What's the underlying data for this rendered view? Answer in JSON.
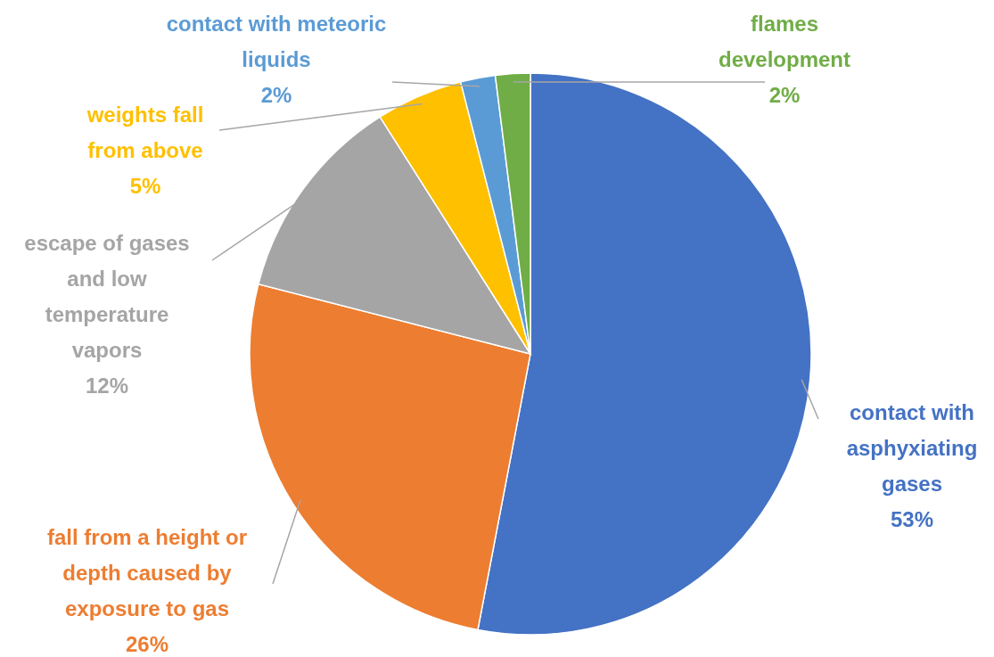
{
  "chart_data": {
    "type": "pie",
    "categories": [
      "contact with asphyxiating gases",
      "fall from a height or depth caused by exposure to gas",
      "escape of gases and low temperature vapors",
      "weights fall from above",
      "contact with meteoric liquids",
      "flames development"
    ],
    "values": [
      53,
      26,
      12,
      5,
      2,
      2
    ],
    "colors": [
      "#4472c4",
      "#ed7d31",
      "#a5a5a5",
      "#ffc000",
      "#5b9bd5",
      "#70ad47"
    ],
    "value_labels": [
      "53%",
      "26%",
      "12%",
      "5%",
      "2%",
      "2%"
    ]
  }
}
